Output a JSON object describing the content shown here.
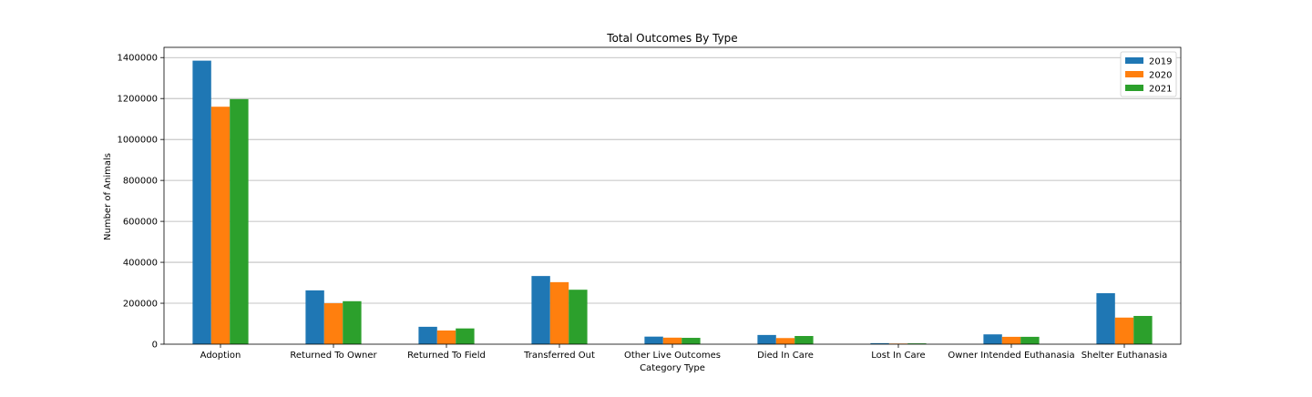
{
  "chart_data": {
    "type": "bar",
    "title": "Total Outcomes By Type",
    "xlabel": "Category Type",
    "ylabel": "Number of Animals",
    "ylim": [
      0,
      1450000
    ],
    "yticks": [
      0,
      200000,
      400000,
      600000,
      800000,
      1000000,
      1200000,
      1400000
    ],
    "grid": "horizontal",
    "legend_position": "top-right",
    "categories": [
      "Adoption",
      "Returned To Owner",
      "Returned To Field",
      "Transferred Out",
      "Other Live Outcomes",
      "Died In Care",
      "Lost In Care",
      "Owner Intended Euthanasia",
      "Shelter Euthanasia"
    ],
    "series": [
      {
        "name": "2019",
        "color": "#1f77b4",
        "values": [
          1385000,
          263000,
          85000,
          333000,
          37000,
          45000,
          5000,
          48000,
          249000
        ]
      },
      {
        "name": "2020",
        "color": "#ff7f0e",
        "values": [
          1160000,
          200000,
          67000,
          303000,
          32000,
          30000,
          3000,
          36000,
          130000
        ]
      },
      {
        "name": "2021",
        "color": "#2ca02c",
        "values": [
          1197000,
          210000,
          77000,
          266000,
          31000,
          40000,
          4000,
          36000,
          138000
        ]
      }
    ]
  }
}
